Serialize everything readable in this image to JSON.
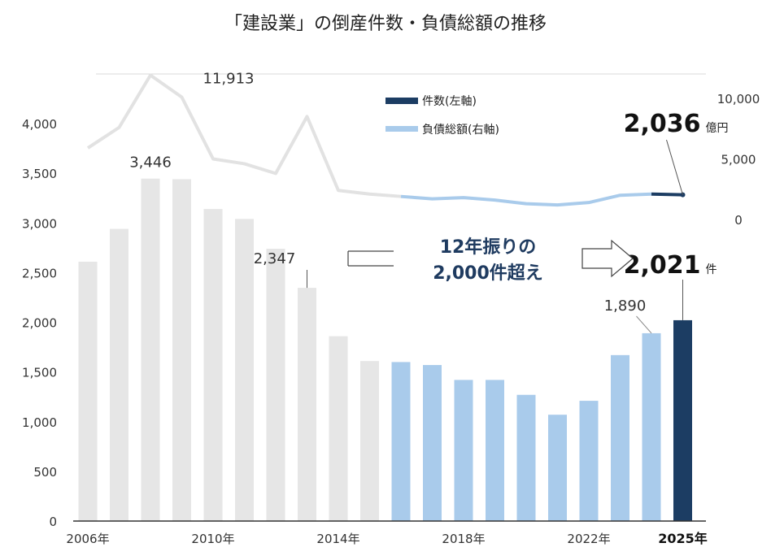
{
  "chart_data": {
    "type": "bar",
    "title": "「建設業」の倒産件数・負債総額の推移",
    "years": [
      2006,
      2007,
      2008,
      2009,
      2010,
      2011,
      2012,
      2013,
      2014,
      2015,
      2016,
      2017,
      2018,
      2019,
      2020,
      2021,
      2022,
      2023,
      2024,
      2025
    ],
    "x_tick_labels": [
      {
        "year": 2006,
        "text": "2006年"
      },
      {
        "year": 2010,
        "text": "2010年"
      },
      {
        "year": 2014,
        "text": "2014年"
      },
      {
        "year": 2018,
        "text": "2018年"
      },
      {
        "year": 2022,
        "text": "2022年"
      },
      {
        "year": 2025,
        "text": "2025年"
      }
    ],
    "series": [
      {
        "name": "件数(左軸)",
        "axis": "left",
        "type": "bar",
        "values": [
          2610,
          2940,
          3446,
          3440,
          3140,
          3040,
          2740,
          2347,
          1860,
          1610,
          1600,
          1570,
          1420,
          1420,
          1270,
          1070,
          1210,
          1670,
          1890,
          2021
        ]
      },
      {
        "name": "負債総額(右軸)",
        "axis": "right",
        "type": "line",
        "values": [
          5900,
          7600,
          11913,
          10100,
          5000,
          4600,
          3800,
          8500,
          2400,
          2100,
          1900,
          1700,
          1800,
          1600,
          1300,
          1200,
          1400,
          2000,
          2100,
          2036
        ]
      }
    ],
    "left_axis": {
      "ylim": [
        0,
        4000
      ],
      "ticks": [
        0,
        500,
        1000,
        1500,
        2000,
        2500,
        3000,
        3500,
        4000
      ],
      "tick_labels": [
        "0",
        "500",
        "1,000",
        "1,500",
        "2,000",
        "2,500",
        "3,000",
        "3,500",
        "4,000"
      ]
    },
    "right_axis": {
      "ylim": [
        0,
        10000
      ],
      "ticks": [
        0,
        5000,
        10000
      ],
      "tick_labels": [
        "0",
        "5,000",
        "10,000"
      ]
    },
    "colors": {
      "gray_bar": "#e6e6e6",
      "blue_bar": "#a9cbeb",
      "dark_bar": "#1c3d63",
      "gray_line": "#e2e2e2",
      "blue_line": "#a9cbeb",
      "dark_line": "#1c3d63",
      "axis": "#333333"
    },
    "data_labels": [
      {
        "key": "bar_2008",
        "text": "3,446"
      },
      {
        "key": "bar_2013",
        "text": "2,347"
      },
      {
        "key": "bar_2024",
        "text": "1,890"
      },
      {
        "key": "bar_2025",
        "text": "2,021",
        "unit": "件"
      },
      {
        "key": "line_2008",
        "text": "11,913"
      },
      {
        "key": "line_2025",
        "text": "2,036",
        "unit": "億円"
      }
    ],
    "annotation": {
      "line1": "12年振りの",
      "line2": "2,000件超え"
    },
    "legend": {
      "placement": "top-right",
      "items": [
        {
          "text": "件数(左軸)",
          "color": "#1c3d63"
        },
        {
          "text": "負債総額(右軸)",
          "color": "#a9cbeb"
        }
      ]
    }
  }
}
